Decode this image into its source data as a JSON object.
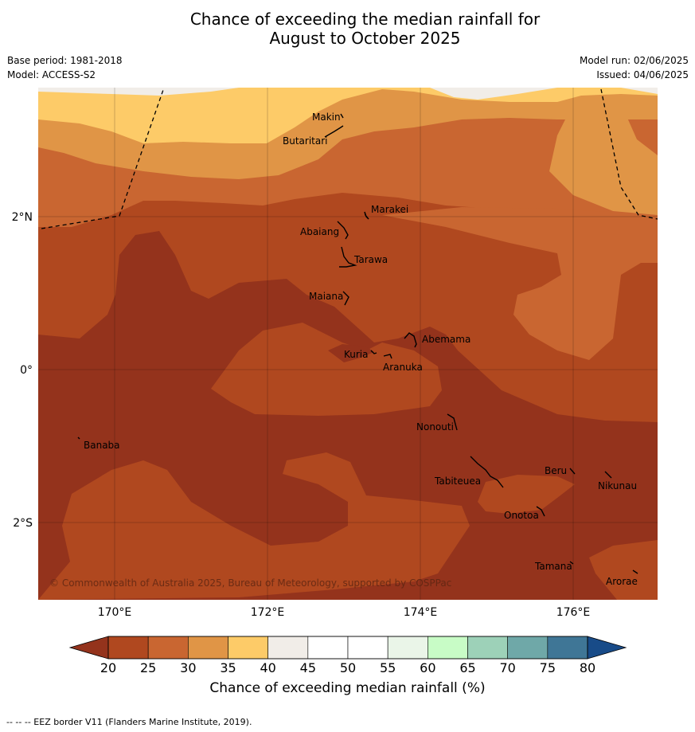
{
  "title": {
    "line1": "Chance of exceeding the median rainfall for",
    "line2": "August to October 2025"
  },
  "meta": {
    "base_period": "Base period: 1981-2018",
    "model": "Model: ACCESS-S2",
    "model_run": "Model run: 02/06/2025",
    "issued": "Issued: 04/06/2025"
  },
  "map": {
    "lon_range": [
      169,
      177.1
    ],
    "lat_range": [
      -3.0,
      3.7
    ],
    "x_ticks": [
      "170°E",
      "172°E",
      "174°E",
      "176°E"
    ],
    "y_ticks": [
      "2°N",
      "0°",
      "2°S"
    ],
    "copyright": "© Commonwealth of Australia 2025, Bureau of Meteorology, supported by COSPPac",
    "places": [
      {
        "name": "Makin",
        "lon": 172.95,
        "lat": 3.4
      },
      {
        "name": "Butaritari",
        "lon": 172.8,
        "lat": 3.0
      },
      {
        "name": "Marakei",
        "lon": 173.3,
        "lat": 2.0
      },
      {
        "name": "Abaiang",
        "lon": 172.95,
        "lat": 1.8
      },
      {
        "name": "Tarawa",
        "lon": 173.05,
        "lat": 1.45
      },
      {
        "name": "Maiana",
        "lon": 173.0,
        "lat": 0.95
      },
      {
        "name": "Abemama",
        "lon": 173.9,
        "lat": 0.4
      },
      {
        "name": "Kuria",
        "lon": 173.4,
        "lat": 0.22
      },
      {
        "name": "Aranuka",
        "lon": 173.6,
        "lat": 0.15
      },
      {
        "name": "Nonouti",
        "lon": 174.4,
        "lat": -0.65
      },
      {
        "name": "Banaba",
        "lon": 169.55,
        "lat": -0.85
      },
      {
        "name": "Tabiteuea",
        "lon": 174.8,
        "lat": -1.3
      },
      {
        "name": "Beru",
        "lon": 176.0,
        "lat": -1.35
      },
      {
        "name": "Nikunau",
        "lon": 176.45,
        "lat": -1.35
      },
      {
        "name": "Onotoa",
        "lon": 175.55,
        "lat": -1.8
      },
      {
        "name": "Tamana",
        "lon": 175.97,
        "lat": -2.5
      },
      {
        "name": "Arorae",
        "lon": 176.82,
        "lat": -2.65
      }
    ]
  },
  "colorbar": {
    "labels": [
      "20",
      "25",
      "30",
      "35",
      "40",
      "45",
      "50",
      "55",
      "60",
      "65",
      "70",
      "75",
      "80"
    ],
    "colors": [
      "#b0481f",
      "#c96631",
      "#e09546",
      "#fdcb68",
      "#f1ede8",
      "#ffffff",
      "#ffffff",
      "#eaf5e8",
      "#c8fcc6",
      "#9dd1b8",
      "#6fa8a8",
      "#3f7696"
    ],
    "low_color": "#94331c",
    "high_color": "#184b88",
    "title": "Chance of exceeding median rainfall (%)"
  },
  "footer": "--  --  -- EEZ border V11 (Flanders Marine Institute, 2019)."
}
